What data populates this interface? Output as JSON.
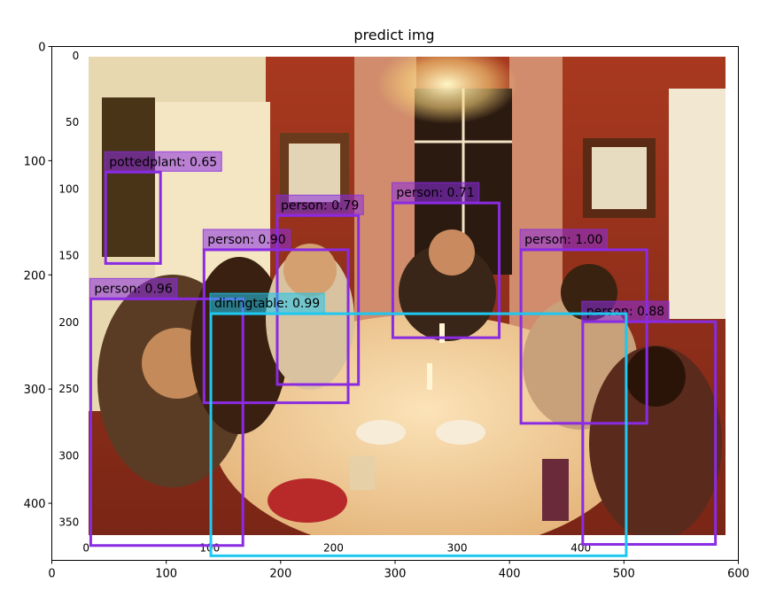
{
  "chart_data": {
    "type": "scatter",
    "title": "predict img",
    "xlabel": "",
    "ylabel": "",
    "xlim": [
      0,
      600
    ],
    "ylim": [
      0,
      450
    ],
    "y_inverted": true,
    "x_ticks": [
      "0",
      "100",
      "200",
      "300",
      "400",
      "500",
      "600"
    ],
    "y_ticks": [
      "0",
      "100",
      "200",
      "300",
      "400"
    ],
    "inner_x_ticks": [
      "0",
      "100",
      "200",
      "300",
      "400"
    ],
    "inner_y_ticks": [
      "0",
      "50",
      "100",
      "150",
      "200",
      "250",
      "300",
      "350"
    ],
    "photo_extent": {
      "x0": 30,
      "x1": 592,
      "y0": 8,
      "y1": 446
    },
    "detections": [
      {
        "label": "pottedplant: 0.65",
        "x0": 47,
        "y0": 110,
        "x1": 95,
        "y1": 190,
        "color": "#8a2be2"
      },
      {
        "label": "person: 0.79",
        "x0": 197,
        "y0": 148,
        "x1": 268,
        "y1": 296,
        "color": "#8a2be2"
      },
      {
        "label": "person: 0.71",
        "x0": 298,
        "y0": 137,
        "x1": 391,
        "y1": 255,
        "color": "#8a2be2"
      },
      {
        "label": "person: 0.90",
        "x0": 133,
        "y0": 178,
        "x1": 259,
        "y1": 312,
        "color": "#8a2be2"
      },
      {
        "label": "person: 1.00",
        "x0": 410,
        "y0": 178,
        "x1": 520,
        "y1": 330,
        "color": "#8a2be2"
      },
      {
        "label": "person: 0.96",
        "x0": 34,
        "y0": 221,
        "x1": 167,
        "y1": 437,
        "color": "#8a2be2"
      },
      {
        "label": "person: 0.88",
        "x0": 464,
        "y0": 241,
        "x1": 580,
        "y1": 436,
        "color": "#8a2be2"
      },
      {
        "label": "diningtable: 0.99",
        "x0": 139,
        "y0": 234,
        "x1": 502,
        "y1": 446,
        "color": "#1ec8f0"
      }
    ]
  }
}
